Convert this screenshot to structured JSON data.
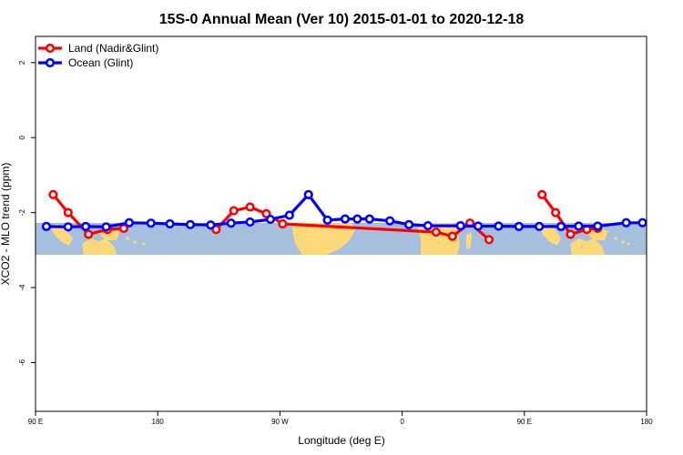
{
  "chart_data": {
    "type": "line",
    "title": "15S-0 Annual Mean (Ver 10)   2015-01-01 to 2020-12-18",
    "xlabel": "Longitude (deg E)",
    "ylabel": "XCO2 - MLO trend (ppm)",
    "xlim": [
      90,
      540
    ],
    "ylim": [
      -7.3,
      2.7
    ],
    "x_ticks": [
      {
        "value": 90,
        "label": "90 E"
      },
      {
        "value": 180,
        "label": "180"
      },
      {
        "value": 270,
        "label": "90 W"
      },
      {
        "value": 360,
        "label": "0"
      },
      {
        "value": 450,
        "label": "90 E"
      },
      {
        "value": 540,
        "label": "180"
      }
    ],
    "y_ticks": [
      {
        "value": 2,
        "label": "2"
      },
      {
        "value": 0,
        "label": "0"
      },
      {
        "value": -2,
        "label": "-2"
      },
      {
        "value": -4,
        "label": "-4"
      },
      {
        "value": -6,
        "label": "-6"
      }
    ],
    "legend_position": "top-left",
    "map_band": {
      "lat_min": -15,
      "lat_max": 0,
      "ocean_color": "#a7bfdf",
      "land_color": "#fdd97a"
    },
    "series": [
      {
        "name": "Land (Nadir&Glint)",
        "color": "#ff0000",
        "segments": [
          {
            "x": [
              103,
              114,
              129,
              143,
              155
            ],
            "y": [
              -1.52,
              -2.0,
              -2.58,
              -2.45,
              -2.42
            ]
          },
          {
            "x": [
              223,
              236,
              248,
              260,
              272,
              385,
              397,
              410,
              424
            ],
            "y": [
              -2.45,
              -1.95,
              -1.85,
              -2.03,
              -2.3,
              -2.52,
              -2.63,
              -2.28,
              -2.72
            ]
          },
          {
            "x": [
              463,
              473,
              484,
              496,
              504
            ],
            "y": [
              -1.52,
              -2.0,
              -2.58,
              -2.45,
              -2.42
            ]
          }
        ]
      },
      {
        "name": "Ocean (Glint)",
        "color": "#0000ff",
        "points": {
          "x": [
            98,
            114,
            127,
            142,
            159,
            175,
            189,
            204,
            219,
            234,
            248,
            263,
            277,
            291,
            305,
            318,
            327,
            336,
            351,
            365,
            379,
            403,
            416,
            431,
            446,
            461,
            477,
            490,
            504,
            525,
            537
          ],
          "y": [
            -2.37,
            -2.38,
            -2.37,
            -2.38,
            -2.27,
            -2.28,
            -2.3,
            -2.32,
            -2.33,
            -2.28,
            -2.25,
            -2.18,
            -2.07,
            -1.52,
            -2.2,
            -2.17,
            -2.17,
            -2.17,
            -2.22,
            -2.32,
            -2.35,
            -2.35,
            -2.36,
            -2.36,
            -2.37,
            -2.37,
            -2.37,
            -2.36,
            -2.36,
            -2.27,
            -2.27
          ]
        }
      }
    ]
  }
}
